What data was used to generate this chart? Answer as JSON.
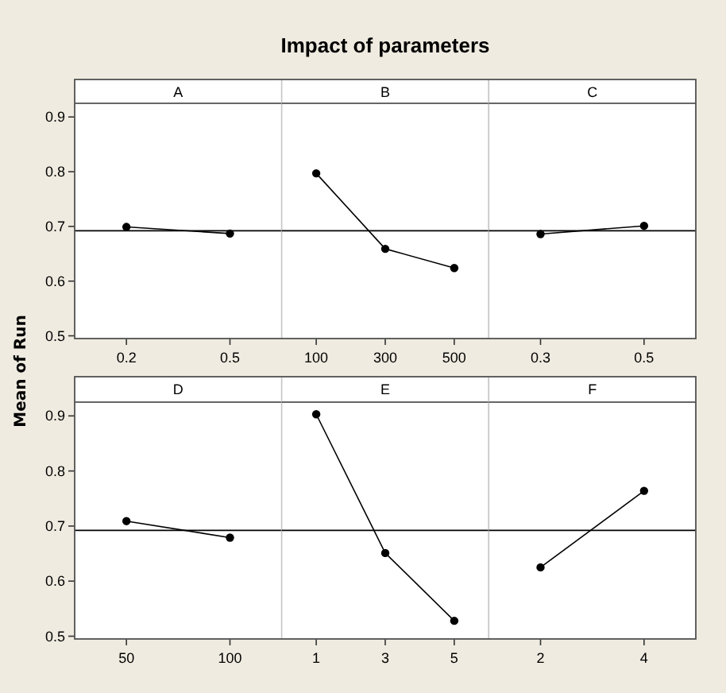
{
  "chart_data": [
    {
      "type": "line",
      "title": "A",
      "annotations": [
        "Impact of parameters"
      ],
      "ylabel": "Mean of Run",
      "categories": [
        "0.2",
        "0.5"
      ],
      "values": [
        0.699,
        0.687
      ],
      "color": "#000000",
      "marker": "circle",
      "ylim": [
        0.495,
        0.925
      ],
      "yticks": [
        0.5,
        0.6,
        0.7,
        0.8,
        0.9
      ],
      "ref_lines": [
        {
          "axis": "y",
          "value": 0.692,
          "color": "#000000"
        }
      ]
    },
    {
      "type": "line",
      "title": "B",
      "categories": [
        "100",
        "300",
        "500"
      ],
      "values": [
        0.797,
        0.659,
        0.624
      ],
      "color": "#000000",
      "marker": "circle",
      "ylim": [
        0.495,
        0.925
      ],
      "tick_labels": "x",
      "ref_lines": [
        {
          "axis": "y",
          "value": 0.692,
          "color": "#000000"
        }
      ]
    },
    {
      "type": "line",
      "title": "C",
      "categories": [
        "0.3",
        "0.5"
      ],
      "values": [
        0.686,
        0.701
      ],
      "color": "#000000",
      "marker": "circle",
      "ylim": [
        0.495,
        0.925
      ],
      "tick_labels": "x",
      "ref_lines": [
        {
          "axis": "y",
          "value": 0.692,
          "color": "#000000"
        }
      ]
    },
    {
      "type": "line",
      "title": "D",
      "categories": [
        "50",
        "100"
      ],
      "values": [
        0.709,
        0.679
      ],
      "color": "#000000",
      "marker": "circle",
      "ylim": [
        0.495,
        0.925
      ],
      "yticks": [
        0.5,
        0.6,
        0.7,
        0.8,
        0.9
      ],
      "ref_lines": [
        {
          "axis": "y",
          "value": 0.692,
          "color": "#000000"
        }
      ]
    },
    {
      "type": "line",
      "title": "E",
      "categories": [
        "1",
        "3",
        "5"
      ],
      "values": [
        0.903,
        0.651,
        0.528
      ],
      "color": "#000000",
      "marker": "circle",
      "ylim": [
        0.495,
        0.925
      ],
      "tick_labels": "x",
      "ref_lines": [
        {
          "axis": "y",
          "value": 0.692,
          "color": "#000000"
        }
      ]
    },
    {
      "type": "line",
      "title": "F",
      "categories": [
        "2",
        "4"
      ],
      "values": [
        0.625,
        0.764
      ],
      "color": "#000000",
      "marker": "circle",
      "ylim": [
        0.495,
        0.925
      ],
      "tick_labels": "x",
      "ref_lines": [
        {
          "axis": "y",
          "value": 0.692,
          "color": "#000000"
        }
      ]
    }
  ]
}
